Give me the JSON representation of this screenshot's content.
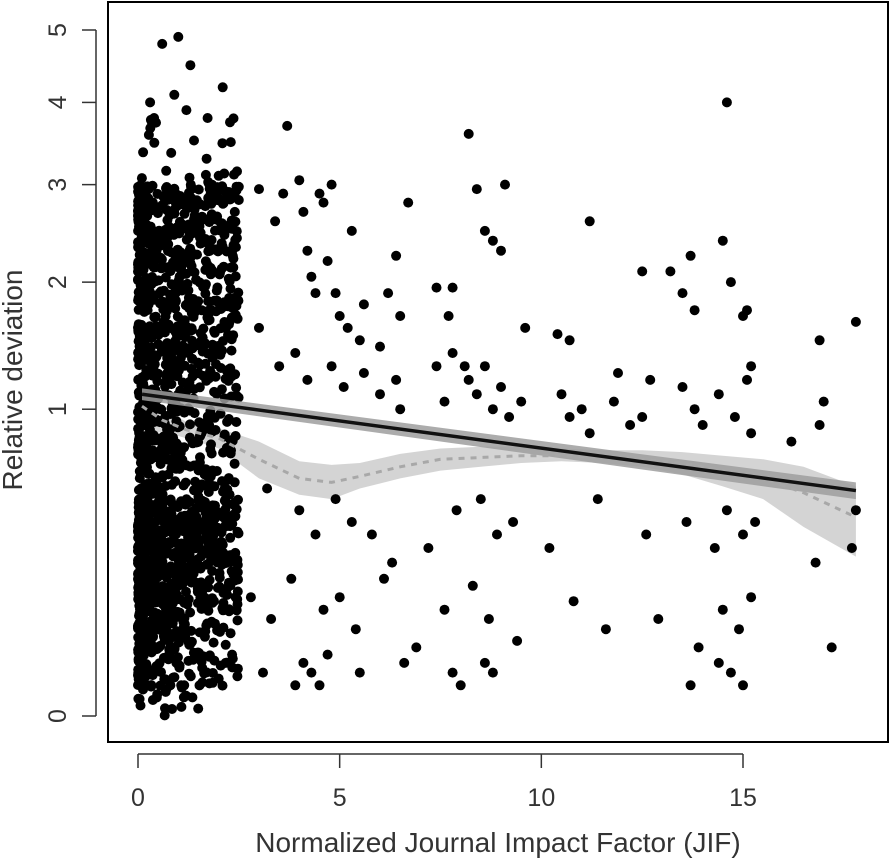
{
  "chart_data": {
    "type": "scatter",
    "title": "",
    "xlabel": "Normalized Journal Impact Factor (JIF)",
    "ylabel": "Relative deviation",
    "xlim": [
      -0.8,
      18.5
    ],
    "ylim": [
      0,
      5
    ],
    "y_scale": "square-root",
    "x_ticks": [
      0,
      5,
      10,
      15
    ],
    "y_ticks": [
      0,
      1,
      2,
      3,
      4,
      5
    ],
    "grid": false,
    "legend": "none",
    "colors": {
      "points": "#000000",
      "linear_fit": "#111111",
      "linear_band": "#9e9e9e",
      "smooth_fit": "#a8a8a8",
      "smooth_band": "#cfcfcf",
      "frame": "#000000"
    },
    "linear_fit": {
      "x": [
        0.1,
        17.8
      ],
      "y": [
        1.1,
        0.54
      ],
      "band_lower": [
        1.06,
        0.5
      ],
      "band_upper": [
        1.14,
        0.58
      ]
    },
    "smooth_fit": {
      "x": [
        0.1,
        0.6,
        1.2,
        2.0,
        3.0,
        4.0,
        4.8,
        5.5,
        6.5,
        7.5,
        8.5,
        9.5,
        10.5,
        11.5,
        12.5,
        13.5,
        14.5,
        15.5,
        16.5,
        17.8
      ],
      "y": [
        1.02,
        0.93,
        0.87,
        0.82,
        0.7,
        0.6,
        0.58,
        0.61,
        0.66,
        0.7,
        0.71,
        0.72,
        0.72,
        0.71,
        0.7,
        0.68,
        0.64,
        0.6,
        0.53,
        0.42
      ],
      "band_lower": [
        0.82,
        0.86,
        0.82,
        0.76,
        0.6,
        0.52,
        0.5,
        0.55,
        0.6,
        0.64,
        0.66,
        0.68,
        0.69,
        0.68,
        0.66,
        0.62,
        0.56,
        0.5,
        0.38,
        0.27
      ],
      "band_upper": [
        1.25,
        1.0,
        0.92,
        0.88,
        0.8,
        0.69,
        0.67,
        0.68,
        0.73,
        0.76,
        0.77,
        0.77,
        0.76,
        0.75,
        0.75,
        0.74,
        0.72,
        0.7,
        0.66,
        0.56
      ]
    },
    "dense_cluster": {
      "x_range": [
        0.0,
        2.5
      ],
      "y_range": [
        0.0,
        3.0
      ],
      "approx_points": 1600,
      "seed": 7
    },
    "points": {
      "x": [
        0.6,
        1.0,
        1.3,
        2.1,
        2.3,
        0.9,
        1.2,
        0.4,
        1.7,
        2.0,
        1.8,
        2.4,
        0.3,
        3.0,
        3.4,
        3.6,
        3.7,
        4.0,
        4.1,
        4.2,
        4.3,
        4.4,
        4.5,
        4.6,
        4.7,
        4.8,
        4.9,
        5.0,
        5.2,
        5.3,
        5.5,
        5.6,
        6.0,
        6.2,
        6.4,
        6.5,
        6.7,
        7.4,
        7.7,
        7.8,
        8.1,
        8.2,
        8.4,
        8.6,
        8.8,
        9.0,
        9.1,
        9.6,
        10.4,
        10.7,
        11.2,
        11.9,
        12.5,
        12.7,
        13.2,
        13.5,
        13.7,
        13.8,
        14.5,
        14.6,
        14.7,
        15.0,
        15.1,
        15.2,
        16.2,
        16.9,
        17.0,
        17.8,
        3.0,
        3.5,
        3.9,
        4.2,
        4.8,
        5.1,
        5.6,
        6.0,
        6.4,
        6.5,
        7.4,
        7.6,
        7.8,
        8.2,
        8.4,
        8.6,
        8.8,
        9.0,
        9.2,
        9.5,
        10.5,
        10.7,
        11.0,
        11.2,
        11.8,
        12.2,
        12.5,
        13.5,
        13.8,
        14.0,
        14.4,
        14.8,
        15.1,
        15.2,
        16.9,
        17.8,
        3.2,
        4.0,
        4.4,
        4.9,
        5.3,
        5.8,
        6.3,
        7.2,
        7.9,
        8.5,
        8.9,
        9.3,
        10.2,
        11.4,
        12.6,
        13.6,
        14.3,
        14.6,
        15.0,
        15.3,
        16.8,
        17.7,
        2.8,
        3.3,
        3.8,
        4.6,
        5.0,
        5.4,
        6.1,
        6.9,
        7.6,
        8.3,
        8.7,
        9.4,
        10.8,
        11.6,
        12.9,
        13.9,
        14.5,
        14.9,
        15.2,
        17.2,
        3.1,
        3.9,
        4.1,
        4.3,
        4.5,
        4.7,
        5.5,
        6.6,
        7.8,
        8.0,
        8.6,
        8.8,
        13.7,
        14.4,
        14.7,
        15.0
      ],
      "y": [
        4.8,
        4.9,
        4.5,
        4.2,
        3.5,
        4.1,
        3.9,
        3.8,
        3.3,
        3.1,
        2.9,
        2.7,
        4.0,
        2.95,
        2.6,
        2.9,
        3.7,
        3.05,
        2.7,
        2.3,
        2.05,
        1.9,
        2.9,
        2.8,
        2.2,
        3.0,
        1.9,
        1.7,
        1.6,
        2.5,
        1.5,
        1.8,
        1.45,
        1.9,
        2.25,
        1.7,
        2.8,
        1.95,
        1.7,
        1.95,
        1.3,
        3.6,
        2.95,
        2.5,
        2.4,
        2.3,
        3.0,
        1.6,
        1.55,
        1.5,
        2.6,
        1.25,
        2.1,
        1.2,
        2.1,
        1.9,
        2.25,
        1.75,
        2.4,
        4.0,
        2.0,
        1.7,
        1.75,
        1.3,
        0.8,
        1.5,
        1.05,
        1.65,
        1.6,
        1.3,
        1.4,
        1.2,
        1.3,
        1.15,
        1.25,
        1.1,
        1.2,
        1.0,
        1.3,
        1.05,
        1.4,
        1.2,
        1.1,
        1.3,
        1.0,
        1.15,
        0.95,
        1.05,
        1.1,
        0.95,
        1.0,
        0.85,
        1.05,
        0.9,
        0.95,
        1.15,
        1.0,
        0.9,
        1.1,
        0.95,
        1.2,
        0.85,
        0.9,
        0.45,
        0.55,
        0.45,
        0.35,
        0.5,
        0.4,
        0.35,
        0.25,
        0.3,
        0.45,
        0.5,
        0.35,
        0.4,
        0.3,
        0.5,
        0.35,
        0.4,
        0.3,
        0.45,
        0.35,
        0.4,
        0.25,
        0.3,
        0.15,
        0.1,
        0.2,
        0.12,
        0.15,
        0.08,
        0.2,
        0.05,
        0.12,
        0.18,
        0.1,
        0.06,
        0.14,
        0.08,
        0.1,
        0.05,
        0.12,
        0.08,
        0.15,
        0.05,
        0.02,
        0.01,
        0.03,
        0.02,
        0.01,
        0.04,
        0.02,
        0.03,
        0.02,
        0.01,
        0.03,
        0.02,
        0.01,
        0.03,
        0.02,
        0.01
      ]
    }
  }
}
